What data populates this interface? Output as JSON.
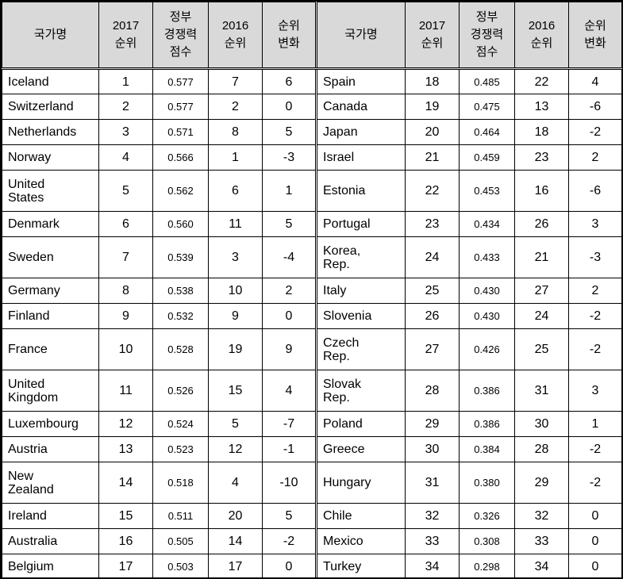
{
  "headers": {
    "country": "국가명",
    "rank2017": [
      "2017",
      "순위"
    ],
    "score": [
      "정부",
      "경쟁력",
      "점수"
    ],
    "rank2016": [
      "2016",
      "순위"
    ],
    "change": [
      "순위",
      "변화"
    ]
  },
  "left_rows": [
    {
      "name": [
        "Iceland"
      ],
      "rank2017": "1",
      "score": "0.577",
      "rank2016": "7",
      "change": "6"
    },
    {
      "name": [
        "Switzerland"
      ],
      "rank2017": "2",
      "score": "0.577",
      "rank2016": "2",
      "change": "0"
    },
    {
      "name": [
        "Netherlands"
      ],
      "rank2017": "3",
      "score": "0.571",
      "rank2016": "8",
      "change": "5"
    },
    {
      "name": [
        "Norway"
      ],
      "rank2017": "4",
      "score": "0.566",
      "rank2016": "1",
      "change": "-3"
    },
    {
      "name": [
        "United",
        "States"
      ],
      "rank2017": "5",
      "score": "0.562",
      "rank2016": "6",
      "change": "1"
    },
    {
      "name": [
        "Denmark"
      ],
      "rank2017": "6",
      "score": "0.560",
      "rank2016": "11",
      "change": "5"
    },
    {
      "name": [
        "Sweden"
      ],
      "rank2017": "7",
      "score": "0.539",
      "rank2016": "3",
      "change": "-4"
    },
    {
      "name": [
        "Germany"
      ],
      "rank2017": "8",
      "score": "0.538",
      "rank2016": "10",
      "change": "2"
    },
    {
      "name": [
        "Finland"
      ],
      "rank2017": "9",
      "score": "0.532",
      "rank2016": "9",
      "change": "0"
    },
    {
      "name": [
        "France"
      ],
      "rank2017": "10",
      "score": "0.528",
      "rank2016": "19",
      "change": "9"
    },
    {
      "name": [
        "United",
        "Kingdom"
      ],
      "rank2017": "11",
      "score": "0.526",
      "rank2016": "15",
      "change": "4"
    },
    {
      "name": [
        "Luxembourg"
      ],
      "rank2017": "12",
      "score": "0.524",
      "rank2016": "5",
      "change": "-7"
    },
    {
      "name": [
        "Austria"
      ],
      "rank2017": "13",
      "score": "0.523",
      "rank2016": "12",
      "change": "-1"
    },
    {
      "name": [
        "New",
        "Zealand"
      ],
      "rank2017": "14",
      "score": "0.518",
      "rank2016": "4",
      "change": "-10"
    },
    {
      "name": [
        "Ireland"
      ],
      "rank2017": "15",
      "score": "0.511",
      "rank2016": "20",
      "change": "5"
    },
    {
      "name": [
        "Australia"
      ],
      "rank2017": "16",
      "score": "0.505",
      "rank2016": "14",
      "change": "-2"
    },
    {
      "name": [
        "Belgium"
      ],
      "rank2017": "17",
      "score": "0.503",
      "rank2016": "17",
      "change": "0"
    }
  ],
  "right_rows": [
    {
      "name": [
        "Spain"
      ],
      "rank2017": "18",
      "score": "0.485",
      "rank2016": "22",
      "change": "4"
    },
    {
      "name": [
        "Canada"
      ],
      "rank2017": "19",
      "score": "0.475",
      "rank2016": "13",
      "change": "-6"
    },
    {
      "name": [
        "Japan"
      ],
      "rank2017": "20",
      "score": "0.464",
      "rank2016": "18",
      "change": "-2"
    },
    {
      "name": [
        "Israel"
      ],
      "rank2017": "21",
      "score": "0.459",
      "rank2016": "23",
      "change": "2"
    },
    {
      "name": [
        "Estonia"
      ],
      "rank2017": "22",
      "score": "0.453",
      "rank2016": "16",
      "change": "-6"
    },
    {
      "name": [
        "Portugal"
      ],
      "rank2017": "23",
      "score": "0.434",
      "rank2016": "26",
      "change": "3"
    },
    {
      "name": [
        "Korea,",
        "Rep."
      ],
      "rank2017": "24",
      "score": "0.433",
      "rank2016": "21",
      "change": "-3"
    },
    {
      "name": [
        "Italy"
      ],
      "rank2017": "25",
      "score": "0.430",
      "rank2016": "27",
      "change": "2"
    },
    {
      "name": [
        "Slovenia"
      ],
      "rank2017": "26",
      "score": "0.430",
      "rank2016": "24",
      "change": "-2"
    },
    {
      "name": [
        "Czech",
        "Rep."
      ],
      "rank2017": "27",
      "score": "0.426",
      "rank2016": "25",
      "change": "-2"
    },
    {
      "name": [
        "Slovak",
        "Rep."
      ],
      "rank2017": "28",
      "score": "0.386",
      "rank2016": "31",
      "change": "3"
    },
    {
      "name": [
        "Poland"
      ],
      "rank2017": "29",
      "score": "0.386",
      "rank2016": "30",
      "change": "1"
    },
    {
      "name": [
        "Greece"
      ],
      "rank2017": "30",
      "score": "0.384",
      "rank2016": "28",
      "change": "-2"
    },
    {
      "name": [
        "Hungary"
      ],
      "rank2017": "31",
      "score": "0.380",
      "rank2016": "29",
      "change": "-2"
    },
    {
      "name": [
        "Chile"
      ],
      "rank2017": "32",
      "score": "0.326",
      "rank2016": "32",
      "change": "0"
    },
    {
      "name": [
        "Mexico"
      ],
      "rank2017": "33",
      "score": "0.308",
      "rank2016": "33",
      "change": "0"
    },
    {
      "name": [
        "Turkey"
      ],
      "rank2017": "34",
      "score": "0.298",
      "rank2016": "34",
      "change": "0"
    }
  ]
}
